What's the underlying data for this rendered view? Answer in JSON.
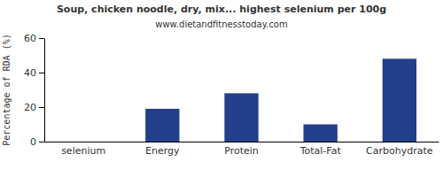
{
  "chart_data": {
    "type": "bar",
    "title": "Soup, chicken noodle, dry, mix... highest selenium per 100g",
    "subtitle": "www.dietandfitnesstoday.com",
    "y_label": "Percentage of RDA (%)",
    "categories": [
      "selenium",
      "Energy",
      "Protein",
      "Total-Fat",
      "Carbohydrate"
    ],
    "values": [
      0,
      19,
      28,
      10,
      48
    ],
    "color": "#233f8c",
    "ylim": [
      0,
      60
    ],
    "yticks": [
      0,
      20,
      40,
      60
    ],
    "grid": false
  }
}
